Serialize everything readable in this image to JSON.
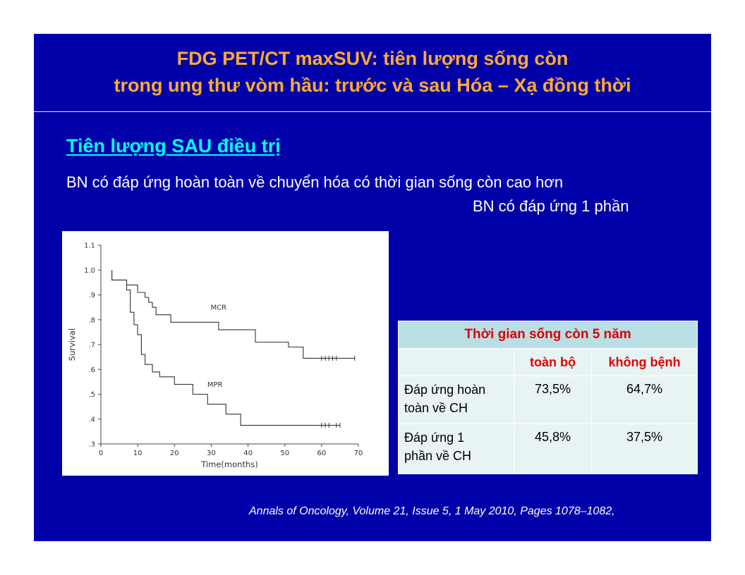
{
  "slide": {
    "title_line1": "FDG PET/CT maxSUV: tiên lượng sống còn",
    "title_line2": "trong ung thư vòm hầu: trước và sau Hóa – Xạ đồng thời",
    "subheading": "Tiên lượng SAU điều trị",
    "body_line1": "BN có đáp ứng hoàn toàn về chuyển hóa có thời gian sống còn cao hơn",
    "body_line2": "BN có đáp ứng 1 phần",
    "citation": "Annals of Oncology, Volume 21, Issue 5, 1 May 2010, Pages 1078–1082,",
    "colors": {
      "background": "#0000a8",
      "title": "#ffaa33",
      "subheading": "#00ffff",
      "table_header": "#e00000"
    }
  },
  "table": {
    "title": "Thời gian sống còn 5 năm",
    "columns": [
      "toàn bộ",
      "không bệnh"
    ],
    "rows": [
      {
        "label_line1": "Đáp ứng hoàn",
        "label_line2": "toàn về CH",
        "values": [
          "73,5%",
          "64,7%"
        ]
      },
      {
        "label_line1": "Đáp ứng 1",
        "label_line2": "phần về CH",
        "values": [
          "45,8%",
          "37,5%"
        ]
      }
    ]
  },
  "chart_data": {
    "type": "line",
    "step": true,
    "xlabel": "Time(months)",
    "ylabel": "Survival",
    "xlim": [
      0,
      70
    ],
    "ylim": [
      0.3,
      1.1
    ],
    "x_ticks": [
      0,
      10,
      20,
      30,
      40,
      50,
      60,
      70
    ],
    "x_tick_labels": [
      "0",
      "10",
      "20",
      "30",
      "40",
      "50",
      "60",
      "70"
    ],
    "y_ticks": [
      1.1,
      1.0,
      0.9,
      0.8,
      0.7,
      0.6,
      0.5,
      0.4,
      0.3
    ],
    "y_tick_labels": [
      "1.1",
      "1.0",
      ".9",
      ".8",
      ".7",
      ".6",
      ".5",
      ".4",
      ".3"
    ],
    "series": [
      {
        "name": "MCR",
        "label_at": [
          32,
          0.84
        ],
        "x": [
          3,
          3,
          4,
          4,
          7,
          7,
          10,
          10,
          12,
          12,
          13,
          13,
          14,
          14,
          15,
          15,
          19,
          19,
          26,
          26,
          32,
          32,
          42,
          42,
          51,
          51,
          55,
          55,
          69
        ],
        "y": [
          1.0,
          0.96,
          0.96,
          0.96,
          0.96,
          0.94,
          0.94,
          0.91,
          0.91,
          0.89,
          0.89,
          0.87,
          0.87,
          0.85,
          0.85,
          0.82,
          0.82,
          0.79,
          0.79,
          0.79,
          0.79,
          0.76,
          0.76,
          0.71,
          0.71,
          0.69,
          0.69,
          0.645,
          0.645
        ],
        "censored_x": [
          60,
          61,
          62,
          63,
          64,
          69
        ]
      },
      {
        "name": "MPR",
        "label_at": [
          31,
          0.53
        ],
        "x": [
          3,
          3,
          7,
          7,
          8,
          8,
          9,
          9,
          10,
          10,
          11,
          11,
          12,
          12,
          14,
          14,
          16,
          16,
          20,
          20,
          25,
          25,
          29,
          29,
          34,
          34,
          36,
          36,
          38,
          38,
          65
        ],
        "y": [
          1.0,
          0.96,
          0.96,
          0.92,
          0.92,
          0.83,
          0.83,
          0.78,
          0.78,
          0.74,
          0.74,
          0.66,
          0.66,
          0.62,
          0.62,
          0.59,
          0.59,
          0.57,
          0.57,
          0.54,
          0.54,
          0.5,
          0.5,
          0.46,
          0.46,
          0.42,
          0.42,
          0.42,
          0.42,
          0.375,
          0.375
        ],
        "censored_x": [
          60,
          61,
          62,
          64,
          65
        ]
      }
    ]
  }
}
